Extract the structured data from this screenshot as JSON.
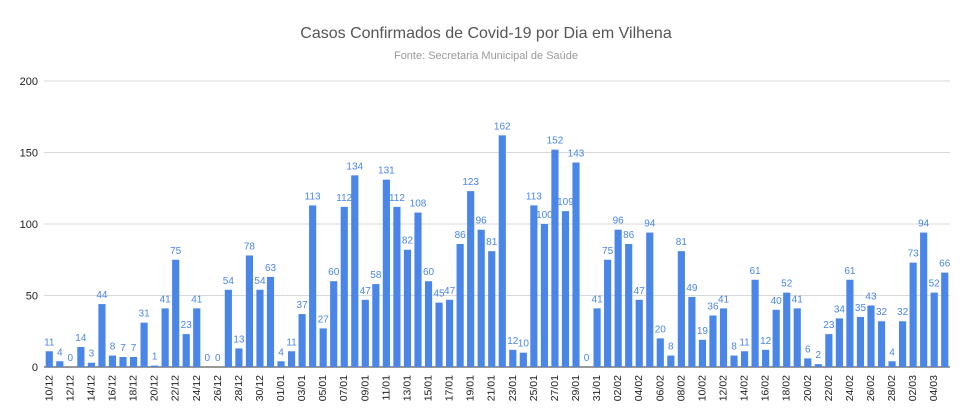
{
  "chart_data": {
    "type": "bar",
    "title": "Casos Confirmados de Covid-19 por Dia em Vilhena",
    "subtitle": "Fonte: Secretaria Municipal de Saúde",
    "xlabel": "",
    "ylabel": "",
    "ylim": [
      0,
      200
    ],
    "yticks": [
      0,
      50,
      100,
      150,
      200
    ],
    "grid": true,
    "bar_color": "#4a86e8",
    "categories": [
      "10/12",
      "11/12",
      "12/12",
      "13/12",
      "14/12",
      "15/12",
      "16/12",
      "17/12",
      "18/12",
      "19/12",
      "20/12",
      "21/12",
      "22/12",
      "23/12",
      "24/12",
      "25/12",
      "26/12",
      "27/12",
      "28/12",
      "29/12",
      "30/12",
      "31/12",
      "01/01",
      "02/01",
      "03/01",
      "04/01",
      "05/01",
      "06/01",
      "07/01",
      "08/01",
      "09/01",
      "10/01",
      "11/01",
      "12/01",
      "13/01",
      "14/01",
      "15/01",
      "16/01",
      "17/01",
      "18/01",
      "19/01",
      "20/01",
      "21/01",
      "22/01",
      "23/01",
      "24/01",
      "25/01",
      "26/01",
      "27/01",
      "28/01",
      "29/01",
      "30/01",
      "31/01",
      "01/02",
      "02/02",
      "03/02",
      "04/02",
      "05/02",
      "06/02",
      "07/02",
      "08/02",
      "09/02",
      "10/02",
      "11/02",
      "12/02",
      "13/02",
      "14/02",
      "15/02",
      "16/02",
      "17/02",
      "18/02",
      "19/02",
      "20/02",
      "21/02",
      "22/02",
      "23/02",
      "24/02",
      "25/02",
      "26/02",
      "27/02",
      "28/02",
      "01/03",
      "02/03",
      "03/03",
      "04/03",
      "05/03"
    ],
    "values": [
      11,
      4,
      0,
      14,
      3,
      44,
      8,
      7,
      7,
      31,
      1,
      41,
      75,
      23,
      41,
      0,
      0,
      54,
      13,
      78,
      54,
      63,
      4,
      11,
      37,
      113,
      27,
      60,
      112,
      134,
      47,
      58,
      131,
      112,
      82,
      108,
      60,
      45,
      47,
      86,
      123,
      96,
      81,
      162,
      12,
      10,
      113,
      100,
      152,
      109,
      143,
      0,
      41,
      75,
      96,
      86,
      47,
      94,
      20,
      8,
      81,
      49,
      19,
      36,
      41,
      8,
      11,
      61,
      12,
      40,
      52,
      41,
      6,
      2,
      23,
      34,
      61,
      35,
      43,
      32,
      4,
      32,
      73,
      94,
      52,
      66
    ],
    "x_tick_labels_shown": [
      "10/12",
      "12/12",
      "14/12",
      "16/12",
      "18/12",
      "20/12",
      "22/12",
      "24/12",
      "26/12",
      "28/12",
      "30/12",
      "01/01",
      "03/01",
      "05/01",
      "07/01",
      "09/01",
      "11/01",
      "13/01",
      "15/01",
      "17/01",
      "19/01",
      "21/01",
      "23/01",
      "25/01",
      "27/01",
      "29/01",
      "31/01",
      "02/02",
      "04/02",
      "06/02",
      "08/02",
      "10/02",
      "12/02",
      "14/02",
      "16/02",
      "18/02",
      "20/02",
      "22/02",
      "24/02",
      "26/02",
      "28/02",
      "02/03",
      "04/03"
    ]
  }
}
